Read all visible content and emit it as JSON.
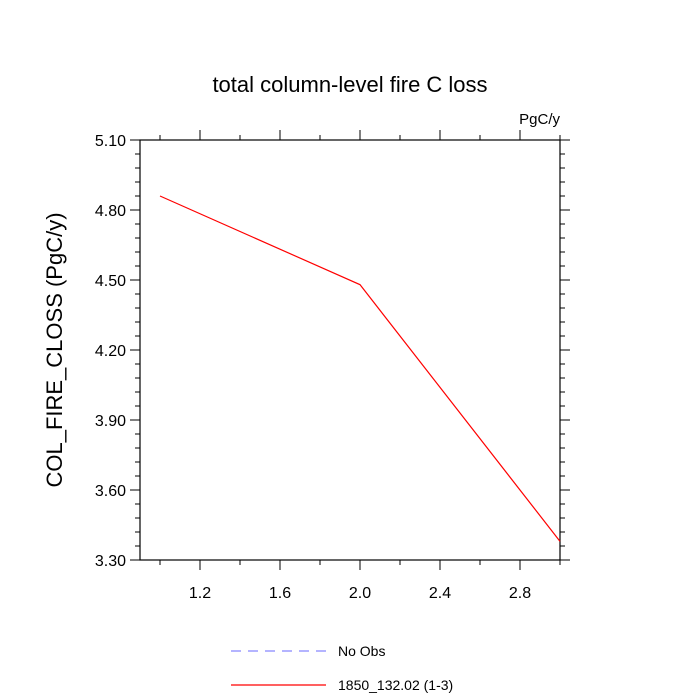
{
  "chart_data": {
    "type": "line",
    "title": "total column-level fire C loss",
    "units_label": "PgC/y",
    "ylabel": "COL_FIRE_CLOSS  (PgC/y)",
    "xlabel": "",
    "xlim": [
      0.9,
      3.0
    ],
    "ylim": [
      3.3,
      5.1
    ],
    "xticks": [
      1.2,
      1.6,
      2.0,
      2.4,
      2.8
    ],
    "xtick_labels": [
      "1.2",
      "1.6",
      "2.0",
      "2.4",
      "2.8"
    ],
    "yticks": [
      3.3,
      3.6,
      3.9,
      4.2,
      4.5,
      4.8,
      5.1
    ],
    "ytick_labels": [
      "3.30",
      "3.60",
      "3.90",
      "4.20",
      "4.50",
      "4.80",
      "5.10"
    ],
    "grid": false,
    "legend_position": "bottom-center",
    "series": [
      {
        "name": "No Obs",
        "color": "#8888ff",
        "dash": true,
        "x": [],
        "y": []
      },
      {
        "name": "1850_132.02 (1-3)",
        "color": "#ff0000",
        "dash": false,
        "x": [
          1.0,
          2.0,
          3.0
        ],
        "y": [
          4.86,
          4.48,
          3.38
        ]
      }
    ]
  }
}
